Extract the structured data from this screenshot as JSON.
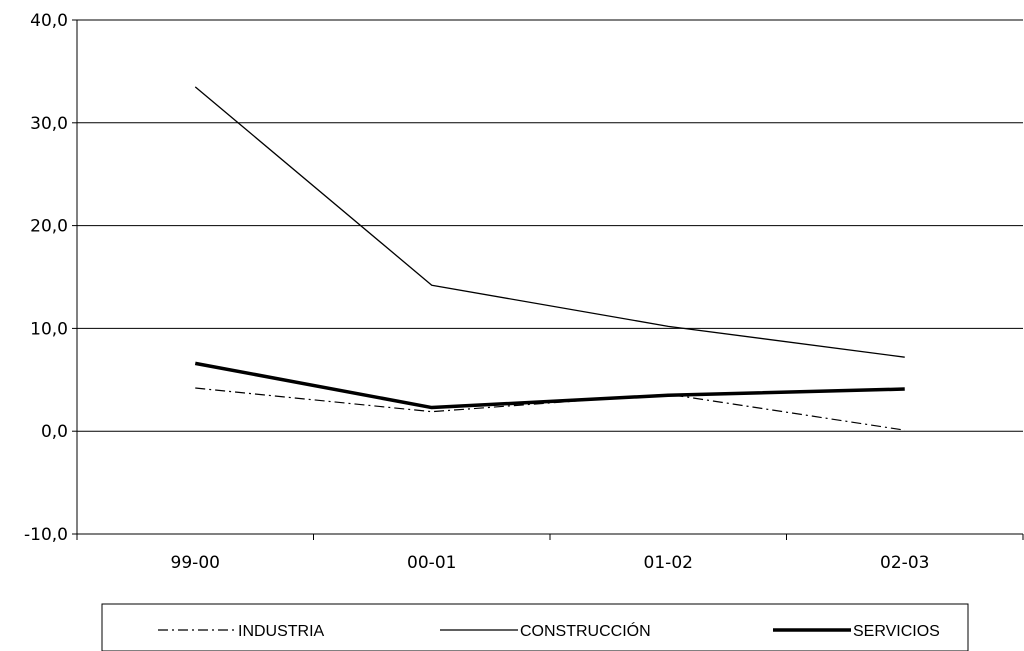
{
  "chart_data": {
    "type": "line",
    "title": "",
    "xlabel": "",
    "ylabel": "",
    "categories": [
      "99-00",
      "00-01",
      "01-02",
      "02-03"
    ],
    "ylim": [
      -10,
      40
    ],
    "yticks": [
      "-10,0",
      "0,0",
      "10,0",
      "20,0",
      "30,0",
      "40,0"
    ],
    "grid": "horizontal",
    "legend_position": "bottom",
    "series": [
      {
        "name": "INDUSTRIA",
        "values": [
          4.2,
          1.9,
          3.6,
          0.1
        ],
        "style": "dash-dot",
        "color": "#000000"
      },
      {
        "name": "CONSTRUCCIÓN",
        "values": [
          33.5,
          14.2,
          10.2,
          7.2
        ],
        "style": "solid-thin",
        "color": "#000000"
      },
      {
        "name": "SERVICIOS",
        "values": [
          6.6,
          2.3,
          3.5,
          4.1
        ],
        "style": "solid-thick",
        "color": "#000000"
      }
    ]
  }
}
